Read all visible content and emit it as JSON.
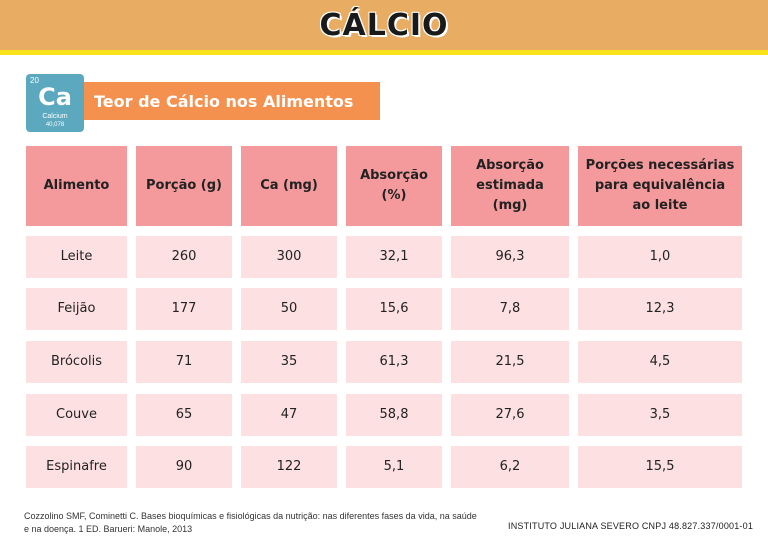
{
  "header": {
    "title": "CÁLCIO"
  },
  "element": {
    "number": "20",
    "symbol": "Ca",
    "name": "Calcium",
    "mass": "40,078"
  },
  "subtitle": "Teor de Cálcio nos Alimentos",
  "table": {
    "headers": [
      "Alimento",
      "Porção (g)",
      "Ca (mg)",
      "Absorção (%)",
      "Absorção estimada (mg)",
      "Porções necessárias para equivalência ao leite"
    ],
    "rows": [
      [
        "Leite",
        "260",
        "300",
        "32,1",
        "96,3",
        "1,0"
      ],
      [
        "Feijão",
        "177",
        "50",
        "15,6",
        "7,8",
        "12,3"
      ],
      [
        "Brócolis",
        "71",
        "35",
        "61,3",
        "21,5",
        "4,5"
      ],
      [
        "Couve",
        "65",
        "47",
        "58,8",
        "27,6",
        "3,5"
      ],
      [
        "Espinafre",
        "90",
        "122",
        "5,1",
        "6,2",
        "15,5"
      ]
    ]
  },
  "footer": {
    "source": "Cozzolino SMF, Cominetti C.  Bases bioquímicas e fisiológicas da nutrição: nas diferentes fases da vida, na saúde e na doença. 1 ED. Barueri: Manole, 2013",
    "institute": "INSTITUTO JULIANA SEVERO CNPJ 48.827.337/0001-01"
  }
}
